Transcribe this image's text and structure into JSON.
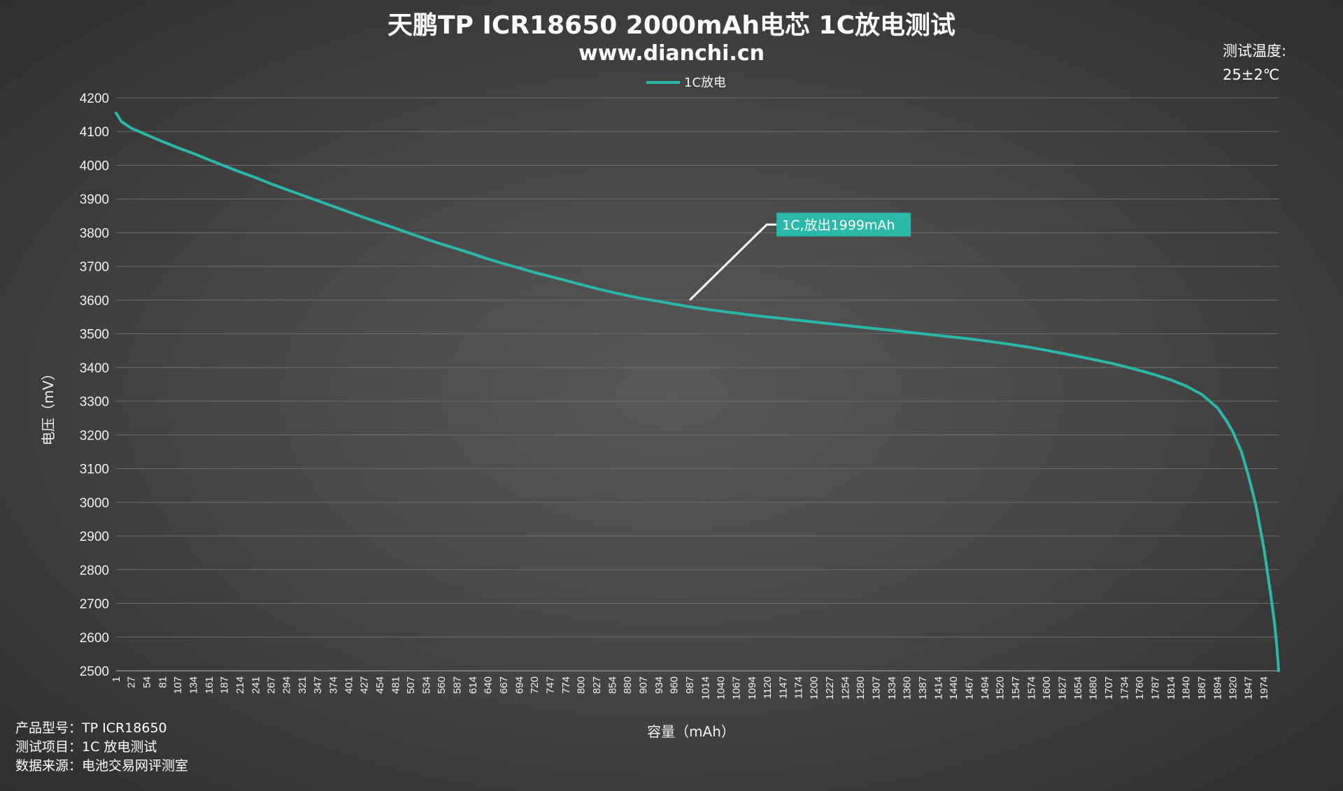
{
  "chart_data": {
    "type": "line",
    "title": "天鹏TP ICR18650 2000mAh电芯 1C放电测试",
    "subtitle": "www.dianchi.cn",
    "xlabel": "容量（mAh）",
    "ylabel": "电压（mV）",
    "ylim": [
      2500,
      4200
    ],
    "yticks": [
      4200,
      4100,
      4000,
      3900,
      3800,
      3700,
      3600,
      3500,
      3400,
      3300,
      3200,
      3100,
      3000,
      2900,
      2800,
      2700,
      2600,
      2500
    ],
    "xlim": [
      1,
      1999
    ],
    "xticks": [
      1,
      27,
      54,
      81,
      107,
      134,
      161,
      187,
      214,
      241,
      267,
      294,
      321,
      347,
      374,
      401,
      427,
      454,
      481,
      507,
      534,
      560,
      587,
      614,
      640,
      667,
      694,
      720,
      747,
      774,
      800,
      827,
      854,
      880,
      907,
      934,
      960,
      987,
      1014,
      1040,
      1067,
      1094,
      1120,
      1147,
      1174,
      1200,
      1227,
      1254,
      1280,
      1307,
      1334,
      1360,
      1387,
      1414,
      1440,
      1467,
      1494,
      1520,
      1547,
      1574,
      1600,
      1627,
      1654,
      1680,
      1707,
      1734,
      1760,
      1787,
      1814,
      1840,
      1867,
      1894,
      1920,
      1947,
      1974
    ],
    "grid": true,
    "legend_position": "top-center",
    "series": [
      {
        "name": "1C放电",
        "color": "#2bb8a8",
        "x": [
          1,
          10,
          27,
          54,
          81,
          107,
          134,
          161,
          187,
          214,
          241,
          267,
          294,
          321,
          347,
          374,
          401,
          427,
          454,
          481,
          507,
          534,
          560,
          587,
          614,
          640,
          667,
          694,
          720,
          747,
          774,
          800,
          827,
          854,
          880,
          907,
          934,
          960,
          987,
          1014,
          1040,
          1067,
          1094,
          1120,
          1147,
          1174,
          1200,
          1227,
          1254,
          1280,
          1307,
          1334,
          1360,
          1387,
          1414,
          1440,
          1467,
          1494,
          1520,
          1547,
          1574,
          1600,
          1627,
          1654,
          1680,
          1707,
          1734,
          1760,
          1787,
          1814,
          1840,
          1867,
          1894,
          1910,
          1920,
          1935,
          1947,
          1960,
          1974,
          1985,
          1992,
          1996,
          1999
        ],
        "values": [
          4155,
          4130,
          4110,
          4090,
          4070,
          4052,
          4035,
          4016,
          3998,
          3980,
          3963,
          3945,
          3928,
          3911,
          3895,
          3878,
          3861,
          3845,
          3829,
          3813,
          3797,
          3781,
          3766,
          3752,
          3737,
          3722,
          3708,
          3695,
          3682,
          3670,
          3658,
          3646,
          3634,
          3623,
          3613,
          3604,
          3596,
          3588,
          3580,
          3573,
          3567,
          3561,
          3555,
          3550,
          3545,
          3540,
          3535,
          3530,
          3525,
          3520,
          3515,
          3510,
          3505,
          3500,
          3495,
          3490,
          3485,
          3479,
          3473,
          3466,
          3459,
          3451,
          3442,
          3433,
          3424,
          3414,
          3403,
          3391,
          3378,
          3363,
          3345,
          3320,
          3280,
          3240,
          3210,
          3150,
          3080,
          2990,
          2860,
          2730,
          2640,
          2570,
          2500
        ]
      }
    ],
    "annotation": {
      "text": "1C,放出1999mAh",
      "x": 987,
      "y": 3600,
      "bg": "#2bb8a8"
    }
  },
  "test_temperature": {
    "label": "测试温度:",
    "value": "25±2℃"
  },
  "footer": {
    "line1": "产品型号：TP ICR18650",
    "line2": "测试项目：1C 放电测试",
    "line3": "数据来源：电池交易网评测室"
  }
}
